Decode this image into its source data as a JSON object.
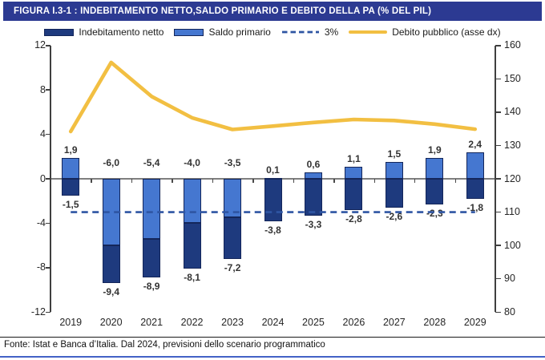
{
  "header": {
    "title": "FIGURA I.3-1 : INDEBITAMENTO NETTO,SALDO PRIMARIO E DEBITO DELLA PA (% DEL PIL)"
  },
  "legend": {
    "items": [
      {
        "label": "Indebitamento netto",
        "swatch": "bar-dark"
      },
      {
        "label": "Saldo primario",
        "swatch": "bar-light"
      },
      {
        "label": "3%",
        "swatch": "dashed"
      },
      {
        "label": "Debito pubblico (asse dx)",
        "swatch": "line"
      }
    ]
  },
  "footer": {
    "text": "Fonte: Istat e Banca d’Italia. Dal 2024, previsioni dello scenario programmatico"
  },
  "colors": {
    "title_bar": "#2c3a92",
    "bar_dark": "#1e3a7e",
    "bar_border": "#14265a",
    "bar_light": "#4577d0",
    "dashed_line": "#2e55a3",
    "debt_line": "#f2bf42",
    "zero_line": "#7f7f7f",
    "axis": "#3f3f3f",
    "bottom_border": "#4362c6"
  },
  "chart_data": {
    "type": "bar",
    "title": "Indebitamento netto, saldo primario e debito della PA (% del PIL)",
    "categories": [
      "2019",
      "2020",
      "2021",
      "2022",
      "2023",
      "2024",
      "2025",
      "2026",
      "2027",
      "2028",
      "2029"
    ],
    "series": [
      {
        "name": "Indebitamento netto",
        "type": "bar",
        "color": "#1e3a7e",
        "values": [
          -1.5,
          -9.4,
          -8.9,
          -8.1,
          -7.2,
          -3.8,
          -3.3,
          -2.8,
          -2.6,
          -2.3,
          -1.8
        ]
      },
      {
        "name": "Saldo primario",
        "type": "bar",
        "color": "#4577d0",
        "values": [
          1.9,
          -6.0,
          -5.4,
          -4.0,
          -3.5,
          0.1,
          0.6,
          1.1,
          1.5,
          1.9,
          2.4
        ]
      },
      {
        "name": "3%",
        "type": "reference_line",
        "style": "dashed",
        "color": "#2e55a3",
        "value": -3
      },
      {
        "name": "Debito pubblico (asse dx)",
        "type": "line",
        "axis": "right",
        "color": "#f2bf42",
        "values": [
          134.2,
          154.9,
          144.7,
          138.3,
          134.8,
          135.8,
          136.9,
          137.8,
          137.5,
          136.4,
          134.9
        ]
      }
    ],
    "left_axis": {
      "min": -12,
      "max": 12,
      "step": 4,
      "ticks": [
        12,
        8,
        4,
        0,
        -4,
        -8,
        -12
      ]
    },
    "right_axis": {
      "min": 80,
      "max": 160,
      "step": 10,
      "ticks": [
        160,
        150,
        140,
        130,
        120,
        110,
        100,
        90,
        80
      ]
    },
    "legend_position": "top",
    "grid": false,
    "number_format": "decimal-comma"
  }
}
